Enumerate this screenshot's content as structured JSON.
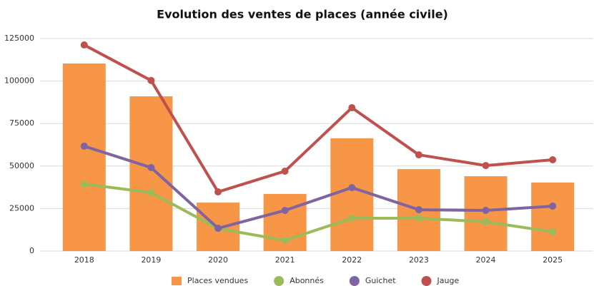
{
  "chart_data": {
    "type": "bar",
    "title": "Evolution des ventes de places (année civile)",
    "categories": [
      "2018",
      "2019",
      "2020",
      "2021",
      "2022",
      "2023",
      "2024",
      "2025"
    ],
    "series": [
      {
        "name": "Places vendues",
        "type": "bar",
        "color": "#f79646",
        "values": [
          110300,
          91000,
          28500,
          33600,
          66300,
          48200,
          44000,
          40300
        ]
      },
      {
        "name": "Abonnés",
        "type": "line",
        "color": "#9bbb59",
        "values": [
          39400,
          34400,
          13200,
          6300,
          19300,
          19300,
          17200,
          11300
        ]
      },
      {
        "name": "Guichet",
        "type": "line",
        "color": "#8064a2",
        "values": [
          61700,
          49100,
          13400,
          23900,
          37300,
          24300,
          23900,
          26400
        ]
      },
      {
        "name": "Jauge",
        "type": "line",
        "color": "#c0504d",
        "values": [
          121200,
          100300,
          34800,
          47000,
          84300,
          56600,
          50300,
          53700
        ]
      }
    ],
    "ylim": [
      0,
      125000
    ],
    "yticks": [
      0,
      25000,
      50000,
      75000,
      100000,
      125000
    ],
    "grid": true,
    "legend": "bottom"
  }
}
